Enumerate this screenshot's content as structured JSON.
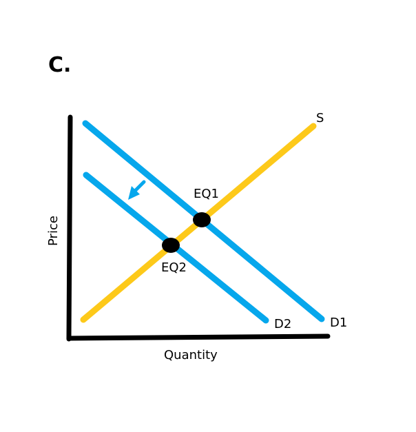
{
  "panel_label": "C.",
  "axes": {
    "x_label": "Quantity",
    "y_label": "Price"
  },
  "curves": {
    "supply": {
      "label": "S"
    },
    "demand_1": {
      "label": "D1"
    },
    "demand_2": {
      "label": "D2"
    }
  },
  "equilibria": {
    "eq1": {
      "label": "EQ1"
    },
    "eq2": {
      "label": "EQ2"
    }
  },
  "colors": {
    "axis": "#000000",
    "supply": "#fdc91a",
    "demand": "#06a7ec",
    "shift_arrow": "#06a7ec",
    "equilibrium_point": "#000000"
  },
  "shift_direction": "left"
}
